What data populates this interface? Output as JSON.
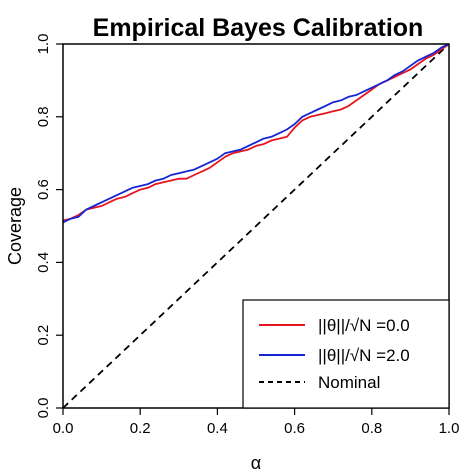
{
  "chart_data": {
    "type": "line",
    "title": "Empirical Bayes Calibration",
    "xlabel": "α",
    "ylabel": "Coverage",
    "xlim": [
      0,
      1
    ],
    "ylim": [
      0,
      1
    ],
    "xticks": [
      "0.0",
      "0.2",
      "0.4",
      "0.6",
      "0.8",
      "1.0"
    ],
    "yticks": [
      "0.0",
      "0.2",
      "0.4",
      "0.6",
      "0.8",
      "1.0"
    ],
    "grid": false,
    "legend_position": "bottom-right",
    "series": [
      {
        "name": "||θ||/√N =0.0",
        "color": "#e8141e",
        "style": "solid",
        "x": [
          0,
          0.02,
          0.04,
          0.06,
          0.08,
          0.1,
          0.12,
          0.14,
          0.16,
          0.18,
          0.2,
          0.22,
          0.24,
          0.26,
          0.28,
          0.3,
          0.32,
          0.34,
          0.36,
          0.38,
          0.4,
          0.42,
          0.44,
          0.46,
          0.48,
          0.5,
          0.52,
          0.54,
          0.56,
          0.58,
          0.6,
          0.62,
          0.64,
          0.66,
          0.68,
          0.7,
          0.72,
          0.74,
          0.76,
          0.78,
          0.8,
          0.82,
          0.84,
          0.86,
          0.88,
          0.9,
          0.92,
          0.94,
          0.96,
          0.98,
          1.0
        ],
        "y": [
          0.515,
          0.52,
          0.53,
          0.545,
          0.55,
          0.555,
          0.565,
          0.575,
          0.58,
          0.59,
          0.6,
          0.605,
          0.615,
          0.62,
          0.625,
          0.63,
          0.63,
          0.64,
          0.65,
          0.66,
          0.675,
          0.69,
          0.7,
          0.705,
          0.71,
          0.72,
          0.725,
          0.735,
          0.74,
          0.745,
          0.77,
          0.79,
          0.8,
          0.805,
          0.81,
          0.815,
          0.82,
          0.83,
          0.845,
          0.86,
          0.875,
          0.89,
          0.9,
          0.91,
          0.92,
          0.93,
          0.945,
          0.96,
          0.97,
          0.985,
          1.0
        ]
      },
      {
        "name": "||θ||/√N =2.0",
        "color": "#1426d4",
        "style": "solid",
        "x": [
          0,
          0.02,
          0.04,
          0.06,
          0.08,
          0.1,
          0.12,
          0.14,
          0.16,
          0.18,
          0.2,
          0.22,
          0.24,
          0.26,
          0.28,
          0.3,
          0.32,
          0.34,
          0.36,
          0.38,
          0.4,
          0.42,
          0.44,
          0.46,
          0.48,
          0.5,
          0.52,
          0.54,
          0.56,
          0.58,
          0.6,
          0.62,
          0.64,
          0.66,
          0.68,
          0.7,
          0.72,
          0.74,
          0.76,
          0.78,
          0.8,
          0.82,
          0.84,
          0.86,
          0.88,
          0.9,
          0.92,
          0.94,
          0.96,
          0.98,
          1.0
        ],
        "y": [
          0.51,
          0.52,
          0.525,
          0.545,
          0.555,
          0.565,
          0.575,
          0.585,
          0.595,
          0.605,
          0.61,
          0.615,
          0.625,
          0.63,
          0.64,
          0.645,
          0.65,
          0.655,
          0.665,
          0.675,
          0.685,
          0.7,
          0.705,
          0.71,
          0.72,
          0.73,
          0.74,
          0.745,
          0.755,
          0.765,
          0.78,
          0.8,
          0.81,
          0.82,
          0.83,
          0.84,
          0.845,
          0.855,
          0.86,
          0.87,
          0.88,
          0.89,
          0.9,
          0.915,
          0.925,
          0.94,
          0.955,
          0.965,
          0.975,
          0.99,
          1.0
        ]
      },
      {
        "name": "Nominal",
        "color": "#000000",
        "style": "dashed",
        "x": [
          0,
          1
        ],
        "y": [
          0,
          1
        ]
      }
    ]
  }
}
